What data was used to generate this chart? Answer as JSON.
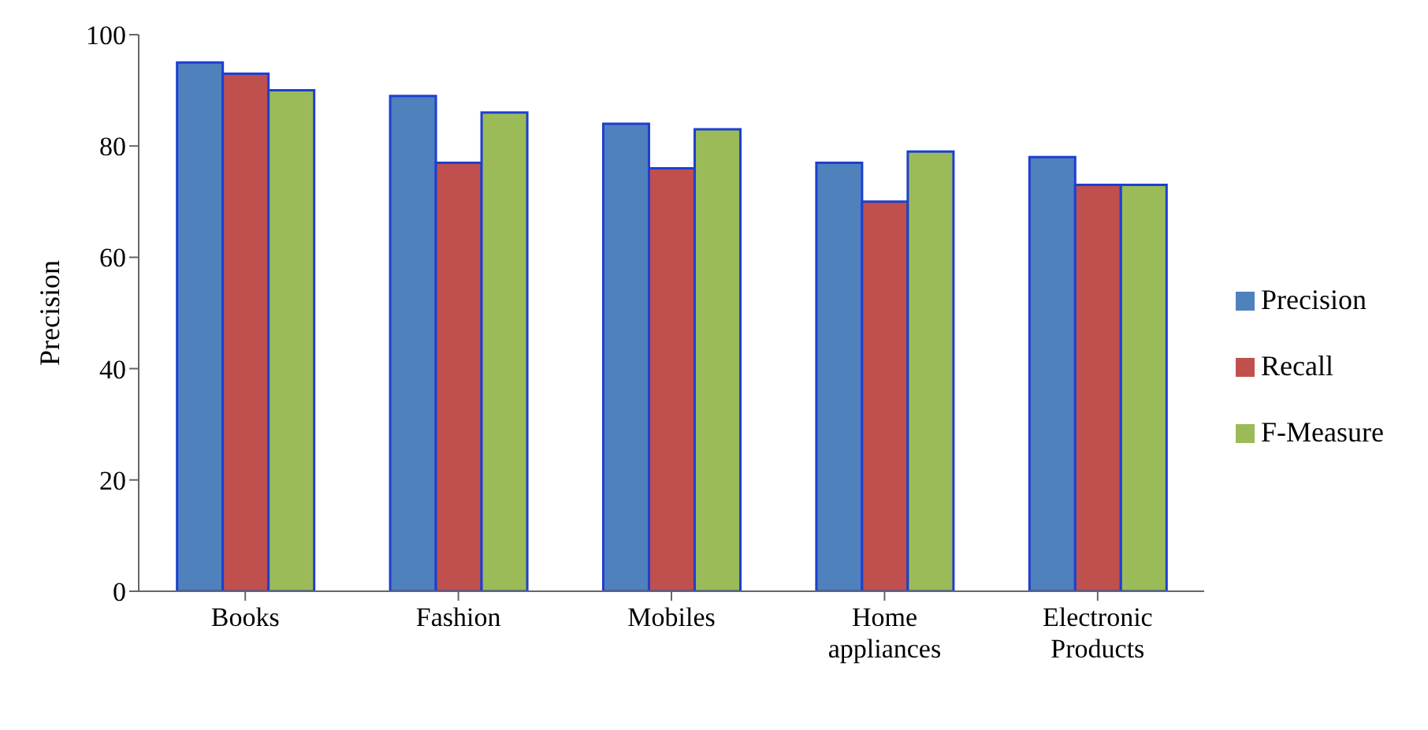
{
  "chart_data": {
    "type": "bar",
    "ylabel": "Precision",
    "categories": [
      "Books",
      "Fashion",
      "Mobiles",
      "Home appliances",
      "Electronic Products"
    ],
    "series": [
      {
        "name": "Precision",
        "color": "#4f81bd",
        "values": [
          95,
          89,
          84,
          77,
          78
        ]
      },
      {
        "name": "Recall",
        "color": "#c0504d",
        "values": [
          93,
          77,
          76,
          70,
          73
        ]
      },
      {
        "name": "F-Measure",
        "color": "#9bbb59",
        "values": [
          90,
          86,
          83,
          79,
          73
        ]
      }
    ],
    "ylim": [
      0,
      100
    ],
    "yticks": [
      0,
      20,
      40,
      60,
      80,
      100
    ],
    "grid": false,
    "legend": "right"
  }
}
